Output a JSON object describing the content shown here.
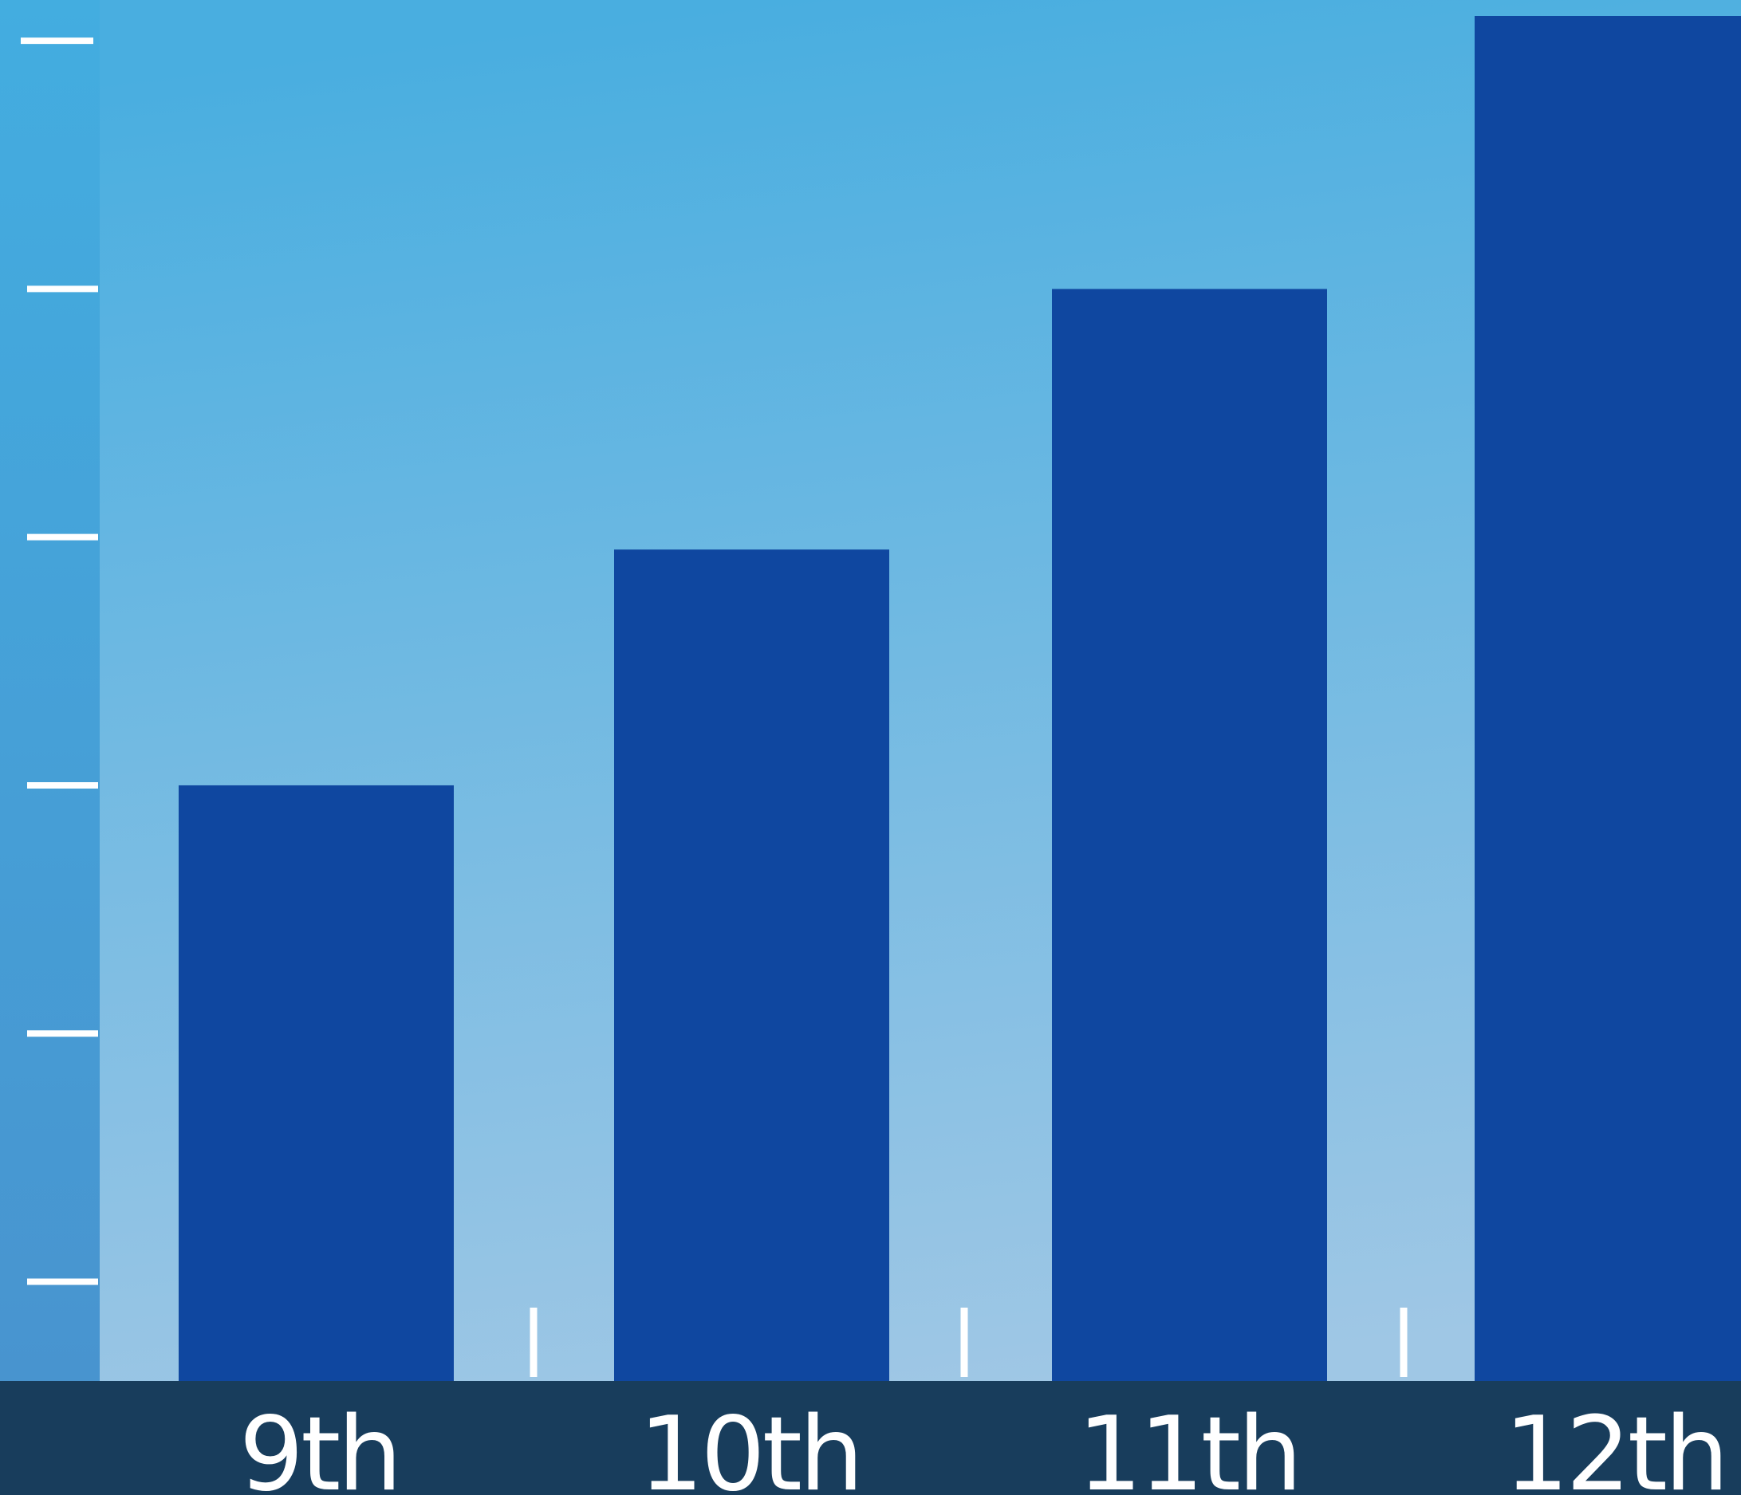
{
  "chart_data": {
    "type": "bar",
    "categories": [
      "9th",
      "10th",
      "11th",
      "12th"
    ],
    "values": [
      2.4,
      3.35,
      4.4,
      5.5
    ],
    "title": "",
    "xlabel": "",
    "ylabel": "",
    "ylim": [
      0,
      5.5
    ],
    "y_ticks": [
      0.4,
      1.4,
      2.4,
      3.4,
      4.4,
      5.4
    ],
    "y_tick_labels_shown": false,
    "grid": false,
    "legend": "none"
  },
  "colors": {
    "bar": "#0f47a0",
    "axis_band": "#183d5c",
    "background_top": "#49aee0",
    "background_bottom": "#9fc7e5",
    "left_strip_top": "#43ade0",
    "left_strip_bottom": "#4894cf",
    "tick": "#ffffff",
    "label": "#ffffff"
  }
}
